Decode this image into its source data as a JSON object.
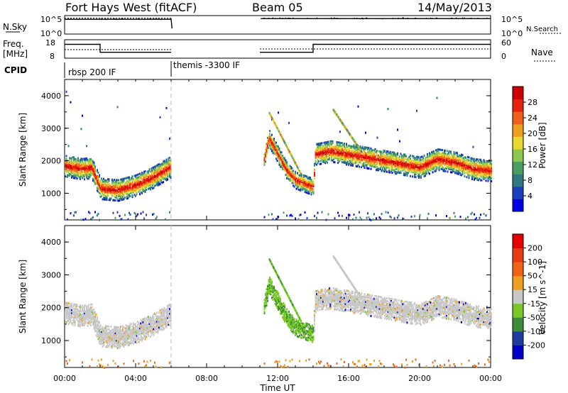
{
  "header": {
    "station": "Fort Hays West (fitACF)",
    "beam": "Beam 05",
    "date": "14/May/2013"
  },
  "panel_labels": {
    "nsky": "N.Sky",
    "nsearch": "N.Search",
    "freq_line1": "Freq.",
    "freq_line2": "[MHz]",
    "nave": "Nave",
    "cpid": "CPID"
  },
  "cpid_entries": [
    {
      "label": "rbsp 200 IF",
      "start_hour": 0,
      "end_hour": 6
    },
    {
      "label": "themis -3300 IF",
      "start_hour": 6,
      "end_hour": 24
    }
  ],
  "time_axis": {
    "label": "Time UT",
    "ticks": [
      "00:00",
      "04:00",
      "08:00",
      "12:00",
      "16:00",
      "20:00",
      "00:00"
    ],
    "tick_hours": [
      0,
      4,
      8,
      12,
      16,
      20,
      24
    ],
    "range_hours": [
      0,
      24
    ]
  },
  "chart_data": [
    {
      "type": "line",
      "title": "",
      "series": [
        {
          "name": "N.Sky",
          "x_hours": [
            0,
            6,
            6.05,
            11,
            11.05,
            24
          ],
          "log10_values": [
            4.0,
            4.0,
            1.5,
            null,
            4.2,
            4.2
          ]
        },
        {
          "name": "N.Search",
          "x_hours": [
            0,
            6,
            6.05,
            11,
            11.05,
            24
          ],
          "log10_values": [
            4.3,
            4.3,
            4.3,
            null,
            4.2,
            4.2
          ]
        }
      ],
      "ylim_log10": [
        0,
        5
      ],
      "ytick_labels_left": [
        "10^5",
        "10^0"
      ],
      "ytick_labels_right": [
        "10^5",
        "10^0"
      ]
    },
    {
      "type": "line",
      "title": "",
      "series": [
        {
          "name": "Freq.",
          "x_hours": [
            0,
            2,
            2,
            6,
            6,
            11,
            11,
            14,
            14,
            24
          ],
          "values": [
            15.5,
            15.5,
            11.2,
            11.2,
            null,
            null,
            11.2,
            11.2,
            15.5,
            15.5
          ]
        },
        {
          "name": "Nave",
          "x_hours": [
            0,
            6,
            6,
            11,
            11,
            24
          ],
          "values": [
            28,
            28,
            null,
            null,
            30,
            30
          ]
        }
      ],
      "freq_ylim": [
        8,
        18
      ],
      "freq_ticks": [
        8,
        18
      ],
      "nave_ylim": [
        0,
        60
      ],
      "nave_ticks": [
        0,
        60
      ]
    },
    {
      "type": "heatmap",
      "title": "",
      "ylabel": "Slant Range [km]",
      "ylim": [
        180,
        4500
      ],
      "yticks": [
        1000,
        2000,
        3000,
        4000
      ],
      "colorbar": {
        "label": "Power [dB]",
        "ticks": [
          4,
          8,
          12,
          16,
          20,
          24,
          28
        ],
        "range": [
          0,
          32
        ],
        "colors": [
          "#0000e8",
          "#1c3fbf",
          "#2f7a80",
          "#48a060",
          "#8cc850",
          "#e8d830",
          "#f0a020",
          "#f06018",
          "#e82010",
          "#cc0000"
        ]
      },
      "echo_band_centre_km": {
        "x_hours": [
          0,
          1,
          1.5,
          2,
          3,
          4,
          5,
          5.9,
          11.2,
          11.5,
          12,
          12.5,
          13,
          13.5,
          14,
          14.1,
          15,
          16,
          17,
          18,
          19,
          20,
          21,
          22,
          23,
          24
        ],
        "range_km": [
          1850,
          1750,
          1800,
          1150,
          1100,
          1250,
          1500,
          1800,
          2000,
          2700,
          2200,
          1700,
          1400,
          1300,
          1200,
          2200,
          2300,
          2200,
          2100,
          2000,
          1900,
          1800,
          2050,
          1950,
          1750,
          1700
        ]
      }
    },
    {
      "type": "heatmap",
      "title": "",
      "ylabel": "Slant Range [km]",
      "ylim": [
        180,
        4500
      ],
      "yticks": [
        1000,
        2000,
        3000,
        4000
      ],
      "colorbar": {
        "label": "Velocity [m s^-1]",
        "ticks": [
          200,
          100,
          50,
          15,
          -15,
          -50,
          -100,
          -200
        ],
        "colors": [
          "#0000c8",
          "#1e3ca0",
          "#3c8c3c",
          "#78c828",
          "#c8c8c8",
          "#f0a020",
          "#f06418",
          "#e83c10",
          "#e80000"
        ]
      }
    }
  ]
}
